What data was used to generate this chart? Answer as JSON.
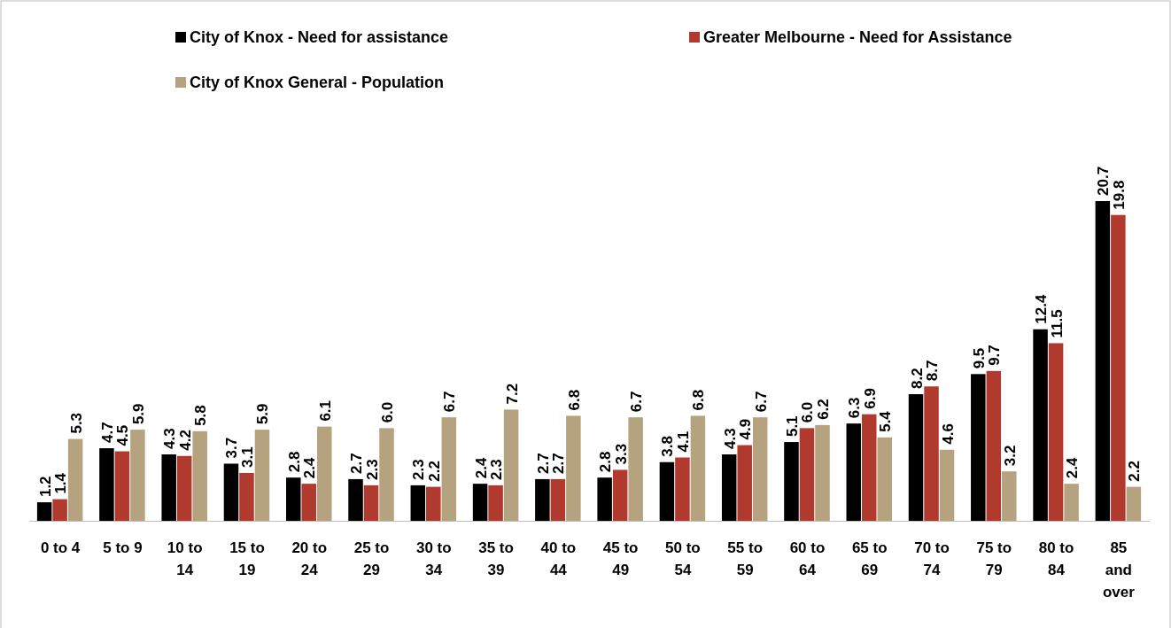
{
  "chart_data": {
    "type": "bar",
    "categories": [
      "0 to 4",
      "5 to 9",
      "10 to 14",
      "15 to 19",
      "20 to 24",
      "25 to 29",
      "30 to 34",
      "35 to 39",
      "40 to 44",
      "45 to 49",
      "50 to 54",
      "55 to 59",
      "60 to 64",
      "65 to 69",
      "70 to 74",
      "75 to 79",
      "80 to 84",
      "85 and over"
    ],
    "series": [
      {
        "name": "City of Knox - Need for assistance",
        "color": "#000000",
        "values": [
          1.2,
          4.7,
          4.3,
          3.7,
          2.8,
          2.7,
          2.3,
          2.4,
          2.7,
          2.8,
          3.8,
          4.3,
          5.1,
          6.3,
          8.2,
          9.5,
          12.4,
          20.7
        ],
        "value_labels": [
          "1.2",
          "4.7",
          "4.3",
          "3.7",
          "2.8",
          "2.7",
          "2.3",
          "2.4",
          "2.7",
          "2.8",
          "3.8",
          "4.3",
          "5.1",
          "6.3",
          "8.2",
          "9.5",
          "12.4",
          "20.7"
        ]
      },
      {
        "name": "Greater Melbourne - Need for Assistance",
        "color": "#b03a2e",
        "values": [
          1.4,
          4.5,
          4.2,
          3.1,
          2.4,
          2.3,
          2.2,
          2.3,
          2.7,
          3.3,
          4.1,
          4.9,
          6.0,
          6.9,
          8.7,
          9.7,
          11.5,
          19.8
        ],
        "value_labels": [
          "1.4",
          "4.5",
          "4.2",
          "3.1",
          "2.4",
          "2.3",
          "2.2",
          "2.3",
          "2.7",
          "3.3",
          "4.1",
          "4.9",
          "6.0",
          "6.9",
          "8.7",
          "9.7",
          "11.5",
          "19.8"
        ]
      },
      {
        "name": "City of Knox General - Population",
        "color": "#b5a27e",
        "values": [
          5.3,
          5.9,
          5.8,
          5.9,
          6.1,
          6.0,
          6.7,
          7.2,
          6.8,
          6.7,
          6.8,
          6.7,
          6.2,
          5.4,
          4.6,
          3.2,
          2.4,
          2.2
        ],
        "value_labels": [
          "5.3",
          "5.9",
          "5.8",
          "5.9",
          "6.1",
          "6.0",
          "6.7",
          "7.2",
          "6.8",
          "6.7",
          "6.8",
          "6.7",
          "6.2",
          "5.4",
          "4.6",
          "3.2",
          "2.4",
          "2.2"
        ]
      }
    ],
    "legend": "top",
    "grid": false
  }
}
